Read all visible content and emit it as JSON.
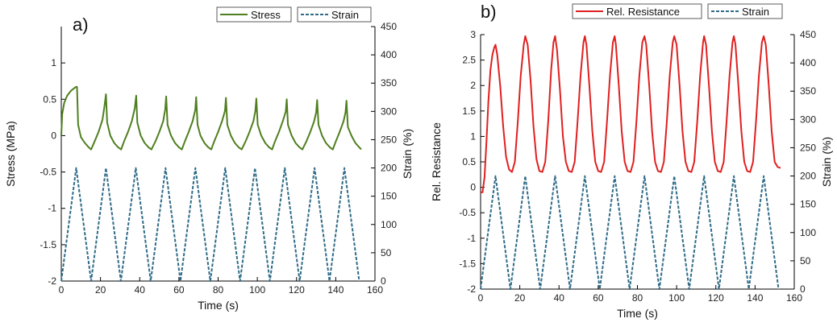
{
  "colors": {
    "stress": "#4f7f1f",
    "strain": "#2f6b87",
    "resistance": "#e02020"
  },
  "chart_data": [
    {
      "type": "line",
      "panel_label": "a)",
      "xlabel": "Time (s)",
      "ylabel_left": "Stress (MPa)",
      "ylabel_right": "Strain (%)",
      "xlim": [
        0,
        160
      ],
      "ylim_left": [
        -2,
        1.5
      ],
      "ylim_right": [
        0,
        450
      ],
      "x_ticks": [
        "0",
        "20",
        "40",
        "60",
        "80",
        "100",
        "120",
        "140",
        "160"
      ],
      "y_left_ticks": [
        "-2",
        "-1.5",
        "-1",
        "-0.5",
        "0",
        "0.5",
        "1"
      ],
      "y_right_ticks": [
        "0",
        "50",
        "100",
        "150",
        "200",
        "250",
        "300",
        "350",
        "400",
        "450"
      ],
      "legend": [
        "Stress",
        "Strain"
      ],
      "legend_position": "top-right",
      "series": [
        {
          "name": "Stress",
          "axis": "left",
          "style": "solid",
          "x": [
            0,
            0.5,
            1.5,
            3,
            5,
            6.5,
            7.5,
            8,
            8.6,
            10,
            12,
            14,
            15.2,
            17,
            19,
            21,
            22,
            22.8,
            23.4,
            25,
            27,
            29,
            30.5,
            32,
            34,
            36,
            37.5,
            38.2,
            38.8,
            40.5,
            42.5,
            44.5,
            46,
            48,
            50,
            52,
            53,
            53.5,
            54.2,
            56,
            58,
            60,
            61.5,
            63,
            65,
            67,
            68.3,
            68.8,
            69.5,
            71,
            73,
            75,
            76.5,
            78,
            80,
            82,
            83.5,
            84,
            84.7,
            86.5,
            88.5,
            90.5,
            92,
            94,
            96,
            98,
            99,
            99.5,
            100.2,
            102,
            104,
            106,
            107.5,
            109,
            111,
            113,
            114.5,
            115,
            115.6,
            117.5,
            119.5,
            121.5,
            123,
            125,
            127,
            129,
            130,
            130.5,
            131.2,
            133,
            135,
            137,
            138.5,
            140,
            142,
            144,
            145,
            145.5,
            146.2,
            148,
            150,
            152,
            153
          ],
          "values": [
            0,
            0.3,
            0.45,
            0.55,
            0.62,
            0.65,
            0.67,
            0.67,
            0.15,
            -0.02,
            -0.1,
            -0.16,
            -0.19,
            -0.08,
            0.05,
            0.22,
            0.4,
            0.57,
            0.18,
            0.0,
            -0.1,
            -0.16,
            -0.19,
            -0.08,
            0.05,
            0.2,
            0.38,
            0.55,
            0.18,
            0.0,
            -0.1,
            -0.16,
            -0.19,
            -0.08,
            0.05,
            0.2,
            0.36,
            0.54,
            0.15,
            0.0,
            -0.1,
            -0.16,
            -0.19,
            -0.08,
            0.05,
            0.2,
            0.35,
            0.53,
            0.15,
            0.0,
            -0.1,
            -0.16,
            -0.19,
            -0.08,
            0.05,
            0.2,
            0.34,
            0.52,
            0.15,
            0.0,
            -0.1,
            -0.16,
            -0.19,
            -0.08,
            0.05,
            0.2,
            0.34,
            0.51,
            0.15,
            0.0,
            -0.1,
            -0.16,
            -0.19,
            -0.08,
            0.05,
            0.2,
            0.33,
            0.5,
            0.15,
            0.0,
            -0.1,
            -0.16,
            -0.19,
            -0.08,
            0.05,
            0.2,
            0.32,
            0.49,
            0.15,
            0.0,
            -0.1,
            -0.16,
            -0.19,
            -0.08,
            0.05,
            0.2,
            0.32,
            0.48,
            0.12,
            0.0,
            -0.1,
            -0.16,
            -0.19
          ]
        },
        {
          "name": "Strain",
          "axis": "right",
          "style": "dashed",
          "x": [
            0,
            7.6,
            15.2,
            22.8,
            30.4,
            38,
            45.6,
            53.2,
            60.8,
            68.4,
            76,
            83.6,
            91.2,
            98.8,
            106.4,
            114,
            121.6,
            129.2,
            136.8,
            144.4,
            152
          ],
          "values": [
            0,
            200,
            0,
            200,
            0,
            200,
            0,
            200,
            0,
            200,
            0,
            200,
            0,
            200,
            0,
            200,
            0,
            200,
            0,
            200,
            0
          ]
        }
      ]
    },
    {
      "type": "line",
      "panel_label": "b)",
      "xlabel": "Time (s)",
      "ylabel_left": "Rel. Resistance",
      "ylabel_right": "Strain (%)",
      "xlim": [
        0,
        160
      ],
      "ylim_left": [
        -2,
        3
      ],
      "ylim_right": [
        0,
        450
      ],
      "x_ticks": [
        "0",
        "20",
        "40",
        "60",
        "80",
        "100",
        "120",
        "140",
        "160"
      ],
      "y_left_ticks": [
        "-2",
        "-1.5",
        "-1",
        "-0.5",
        "0",
        "0.5",
        "1",
        "1.5",
        "2",
        "2.5",
        "3"
      ],
      "y_right_ticks": [
        "0",
        "50",
        "100",
        "150",
        "200",
        "250",
        "300",
        "350",
        "400",
        "450"
      ],
      "legend": [
        "Rel. Resistance",
        "Strain"
      ],
      "legend_position": "top-right",
      "series": [
        {
          "name": "Rel. Resistance",
          "axis": "left",
          "style": "solid",
          "x": [
            0,
            1,
            2,
            3,
            4,
            5,
            6,
            7,
            7.6,
            8.5,
            10,
            11.5,
            13,
            14.5,
            16,
            17.5,
            19,
            20.5,
            22,
            22.8,
            24,
            25.5,
            27,
            28.5,
            30,
            31.5,
            33,
            34.5,
            36,
            37.2,
            38,
            39,
            40.5,
            42,
            43.5,
            45,
            46.5,
            48,
            49.5,
            51,
            52.5,
            53.2,
            54,
            55.5,
            57,
            58.5,
            60,
            61.5,
            63,
            64.5,
            66,
            67.5,
            68.4,
            69,
            70.5,
            72,
            73.5,
            75,
            76.5,
            78,
            79.5,
            81,
            82.5,
            83.6,
            84.5,
            86,
            87.5,
            89,
            90.5,
            92,
            93.5,
            95,
            96.5,
            98,
            98.8,
            100,
            101.5,
            103,
            104.5,
            106,
            107.5,
            109,
            110.5,
            112,
            113.5,
            114,
            115,
            116.5,
            118,
            119.5,
            121,
            122.5,
            124,
            125.5,
            127,
            128.5,
            129.2,
            130,
            131.5,
            133,
            134.5,
            136,
            137.5,
            139,
            140.5,
            142,
            143.5,
            144.4,
            145.5,
            147,
            148.5,
            150,
            151.5,
            153
          ],
          "values": [
            -0.1,
            -0.1,
            0.2,
            0.9,
            1.7,
            2.3,
            2.6,
            2.75,
            2.8,
            2.6,
            2.0,
            1.2,
            0.6,
            0.35,
            0.3,
            0.5,
            1.3,
            2.2,
            2.8,
            2.97,
            2.8,
            2.1,
            1.2,
            0.55,
            0.32,
            0.3,
            0.5,
            1.3,
            2.3,
            2.85,
            2.97,
            2.7,
            1.9,
            1.0,
            0.5,
            0.32,
            0.3,
            0.5,
            1.3,
            2.2,
            2.85,
            2.97,
            2.8,
            2.0,
            1.1,
            0.5,
            0.32,
            0.3,
            0.5,
            1.3,
            2.2,
            2.85,
            2.97,
            2.8,
            2.0,
            1.1,
            0.5,
            0.32,
            0.3,
            0.5,
            1.3,
            2.2,
            2.85,
            2.97,
            2.8,
            2.0,
            1.1,
            0.5,
            0.32,
            0.3,
            0.5,
            1.3,
            2.2,
            2.85,
            2.97,
            2.8,
            2.0,
            1.1,
            0.5,
            0.32,
            0.3,
            0.5,
            1.3,
            2.2,
            2.85,
            2.97,
            2.8,
            2.0,
            1.1,
            0.5,
            0.32,
            0.3,
            0.5,
            1.3,
            2.2,
            2.85,
            2.97,
            2.8,
            2.0,
            1.1,
            0.5,
            0.32,
            0.3,
            0.5,
            1.3,
            2.2,
            2.85,
            2.97,
            2.8,
            2.0,
            1.1,
            0.5,
            0.4,
            0.38
          ]
        },
        {
          "name": "Strain",
          "axis": "right",
          "style": "dashed",
          "x": [
            0,
            7.6,
            15.2,
            22.8,
            30.4,
            38,
            45.6,
            53.2,
            60.8,
            68.4,
            76,
            83.6,
            91.2,
            98.8,
            106.4,
            114,
            121.6,
            129.2,
            136.8,
            144.4,
            152
          ],
          "values": [
            0,
            200,
            0,
            200,
            0,
            200,
            0,
            200,
            0,
            200,
            0,
            200,
            0,
            200,
            0,
            200,
            0,
            200,
            0,
            200,
            0
          ]
        }
      ]
    }
  ]
}
